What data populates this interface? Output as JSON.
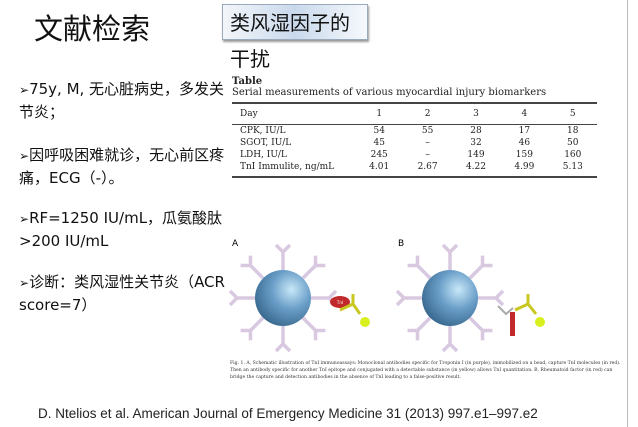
{
  "slide": {
    "title": "文献检索",
    "subtitle": "类风湿因子的干扰"
  },
  "bullets": [
    {
      "marker": "➢",
      "text": "75y, M, 无心脏病史，多发关节炎；"
    },
    {
      "marker": "➢",
      "text": "因呼吸困难就诊，无心前区疼痛，ECG（-）。"
    },
    {
      "marker": "➢",
      "text": "RF=1250 IU/mL，瓜氨酸肽>200 IU/mL"
    },
    {
      "marker": "➢",
      "text": "诊断：类风湿性关节炎（ACR score=7）"
    }
  ],
  "table": {
    "label": "Table",
    "caption": "Serial measurements of various myocardial injury biomarkers",
    "headers": [
      "Day",
      "1",
      "2",
      "3",
      "4",
      "5"
    ],
    "rows": [
      [
        "CPK, IU/L",
        "54",
        "55",
        "28",
        "17",
        "18"
      ],
      [
        "SGOT, IU/L",
        "45",
        "–",
        "32",
        "46",
        "50"
      ],
      [
        "LDH, IU/L",
        "245",
        "–",
        "149",
        "159",
        "160"
      ],
      [
        "TnI Immulite, ng/mL",
        "4.01",
        "2.67",
        "4.22",
        "4.99",
        "5.13"
      ]
    ]
  },
  "figure": {
    "panel_a": "A",
    "panel_b": "B",
    "tni_label": "TnI",
    "colors": {
      "bead": "#6a9ec8",
      "antibody": "#d8c8e0",
      "tni": "#c0282a",
      "detection": "#d8e020",
      "rf": "#c0282a"
    },
    "caption": "Fig. 1. A, Schematic illustration of TnI immunoassays: Monoclonal antibodies specific for Troponin I (in purple), immobilized on a bead, capture TnI molecules (in red). Then an antibody specific for another TnI epitope and conjugated with a detectable substance (in yellow) allows TnI quantitation. B, Rheumatoid factor (in red) can bridge the capture and detection antibodies in the absence of TnI leading to a false-positive result."
  },
  "citation": "D. Ntelios et al.  American Journal of Emergency Medicine 31 (2013) 997.e1–997.e2"
}
